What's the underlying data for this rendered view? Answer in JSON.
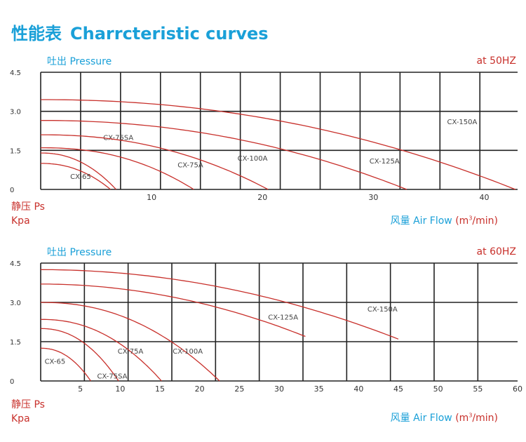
{
  "header": {
    "title_cn": "性能表",
    "title_en": "Charrcteristic curves"
  },
  "chart_data": [
    {
      "type": "line",
      "pressure_label": "吐出 Pressure",
      "freq_label": "at  50HZ",
      "ylabel_line1": "静压 Ps",
      "ylabel_line2": "Kpa",
      "xlabel_cn": "风量",
      "xlabel_en": "Air Flow",
      "xlabel_unit_pre": "(m",
      "xlabel_unit_sup": "3",
      "xlabel_unit_post": "/min)",
      "xlim": [
        0,
        43
      ],
      "ylim": [
        0,
        4.5
      ],
      "xticks": [
        10,
        20,
        30,
        40
      ],
      "yticks": [
        "4.5",
        "3.0",
        "1.5",
        "0"
      ],
      "yticks_values": [
        4.5,
        3.0,
        1.5,
        0
      ],
      "grid_x": [
        0,
        3.6,
        7.2,
        10.8,
        14.4,
        18,
        21.6,
        25.2,
        28.8,
        32.4,
        36,
        39.6
      ],
      "series": [
        {
          "name": "CX-65",
          "p0": 1.0,
          "xmax": 6.3,
          "exp": 2.2,
          "label_x": 3.6,
          "label_y": 0.4
        },
        {
          "name": "CX-75SA",
          "p0": 1.4,
          "xmax": 6.8,
          "exp": 2.2,
          "label_x": 7.0,
          "label_y": 1.9
        },
        {
          "name": "CX-75A",
          "p0": 1.6,
          "xmax": 13.8,
          "exp": 2.3,
          "label_x": 13.5,
          "label_y": 0.85
        },
        {
          "name": "CX-100A",
          "p0": 2.1,
          "xmax": 20.5,
          "exp": 2.2,
          "label_x": 19.1,
          "label_y": 1.1
        },
        {
          "name": "CX-125A",
          "p0": 2.65,
          "xmax": 33.0,
          "exp": 2.1,
          "label_x": 31.0,
          "label_y": 1.0
        },
        {
          "name": "CX-150A",
          "p0": 3.45,
          "xmax": 42.8,
          "exp": 2.1,
          "label_x": 38.0,
          "label_y": 2.5
        }
      ]
    },
    {
      "type": "line",
      "pressure_label": "吐出 Pressure",
      "freq_label": "at  60HZ",
      "ylabel_line1": "静压 Ps",
      "ylabel_line2": "Kpa",
      "xlabel_cn": "风量",
      "xlabel_en": "Air Flow",
      "xlabel_unit_pre": "(m",
      "xlabel_unit_sup": "3",
      "xlabel_unit_post": "/min)",
      "xlim": [
        0,
        60
      ],
      "ylim": [
        0,
        4.5
      ],
      "xticks": [
        5,
        10,
        15,
        20,
        25,
        30,
        35,
        40,
        45,
        50,
        55,
        60
      ],
      "yticks": [
        "4.5",
        "3.0",
        "1.5",
        "0"
      ],
      "yticks_values": [
        4.5,
        3.0,
        1.5,
        0
      ],
      "grid_x": [
        0,
        5.5,
        11,
        16.5,
        22,
        27.5,
        33,
        38.5,
        44,
        49.5,
        55
      ],
      "series": [
        {
          "name": "CX-65",
          "p0": 1.25,
          "xmax": 6.3,
          "exp": 2.2,
          "label_x": 1.8,
          "label_y": 0.65
        },
        {
          "name": "CX-75SA",
          "p0": 2.0,
          "xmax": 9.8,
          "exp": 2.2,
          "label_x": 9.0,
          "label_y": 0.1
        },
        {
          "name": "CX-75A",
          "p0": 2.35,
          "xmax": 15.2,
          "exp": 2.2,
          "label_x": 11.3,
          "label_y": 1.05
        },
        {
          "name": "CX-100A",
          "p0": 3.0,
          "xmax": 22.5,
          "exp": 2.2,
          "label_x": 18.5,
          "label_y": 1.05
        },
        {
          "name": "CX-125A",
          "p0": 3.7,
          "xmax": 33.3,
          "exp": 2.0,
          "xend": 33.3,
          "yend": 1.7,
          "label_x": 30.5,
          "label_y": 2.35
        },
        {
          "name": "CX-150A",
          "p0": 4.25,
          "xmax": 45.0,
          "exp": 2.0,
          "xend": 45.0,
          "yend": 1.6,
          "label_x": 43.0,
          "label_y": 2.65
        }
      ]
    }
  ]
}
